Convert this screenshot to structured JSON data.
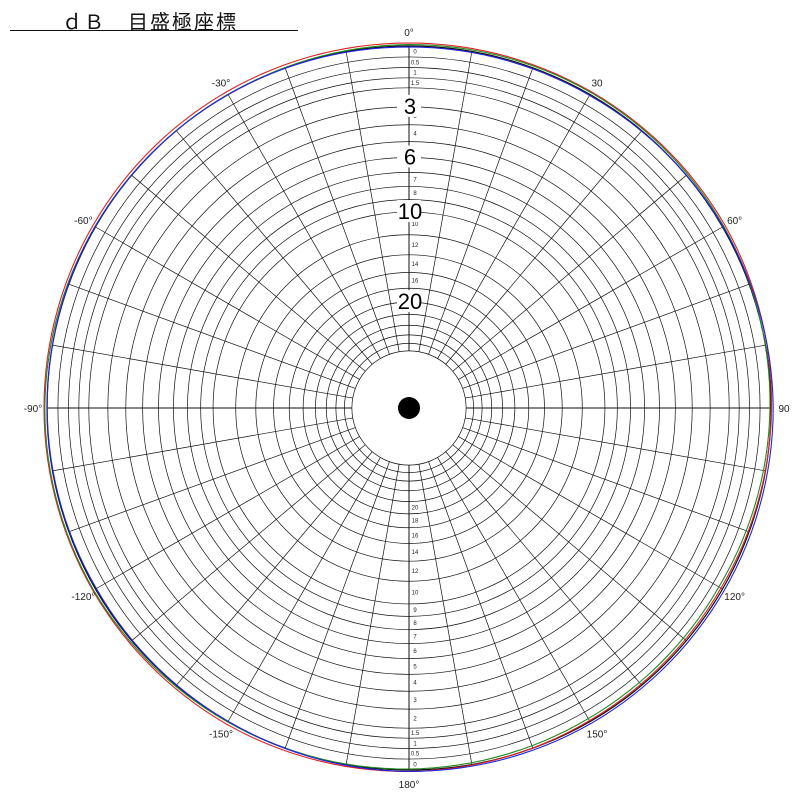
{
  "title": "ｄＢ　目盛極座標",
  "chart_data": {
    "type": "polar-grid",
    "title": "ｄＢ　目盛極座標",
    "scale": "dB",
    "radial_ticks": [
      "0",
      "0.5",
      "1",
      "1.5",
      "2",
      "3",
      "4",
      "5",
      "6",
      "7",
      "8",
      "9",
      "10",
      "12",
      "14",
      "16",
      "18",
      "20"
    ],
    "radial_ticks_lower": [
      "0",
      "0.5",
      "1",
      "1.5",
      "2",
      "3",
      "4",
      "5",
      "6",
      "7",
      "8",
      "9",
      "10",
      "12",
      "14",
      "16",
      "18",
      "20"
    ],
    "large_labels": [
      "3",
      "6",
      "10",
      "20"
    ],
    "angle_labels": [
      {
        "deg": 0,
        "text": "0°"
      },
      {
        "deg": 30,
        "text": "30"
      },
      {
        "deg": 60,
        "text": "60°"
      },
      {
        "deg": 90,
        "text": "90"
      },
      {
        "deg": 120,
        "text": "120°"
      },
      {
        "deg": 150,
        "text": "150°"
      },
      {
        "deg": 180,
        "text": "180°"
      },
      {
        "deg": -150,
        "text": "-150°"
      },
      {
        "deg": -120,
        "text": "-120°"
      },
      {
        "deg": -90,
        "text": "-90°"
      },
      {
        "deg": -60,
        "text": "-60°"
      },
      {
        "deg": -30,
        "text": "-30°"
      }
    ],
    "angular_grid_step_deg": 10,
    "series": [
      {
        "color": "#dd2222",
        "values_db": [
          0,
          0,
          0,
          0.3,
          0.6,
          0.5,
          0.2,
          0,
          0,
          0,
          0,
          0
        ]
      },
      {
        "color": "#228822",
        "values_db": [
          0.2,
          0.1,
          0.2,
          0.5,
          0.9,
          0.8,
          0.5,
          0.3,
          0.1,
          0.1,
          0.3,
          0.4
        ]
      },
      {
        "color": "#2222dd",
        "values_db": [
          0.5,
          0.5,
          0.3,
          0.1,
          0.1,
          0.1,
          0.2,
          0.4,
          0.5,
          0.4,
          0.3,
          0.4
        ]
      }
    ],
    "colors": {
      "grid": "#111111",
      "red": "#dd2222",
      "green": "#228822",
      "blue": "#2222dd"
    }
  }
}
